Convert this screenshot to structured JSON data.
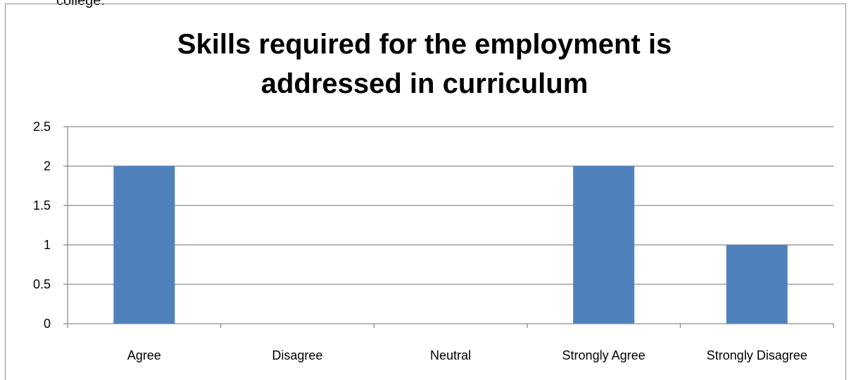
{
  "top_text": "college.",
  "chart_data": {
    "type": "bar",
    "title": "Skills required for the employment is addressed in curriculum",
    "title_lines": [
      "Skills required for the employment is",
      "addressed in curriculum"
    ],
    "xlabel": "",
    "ylabel": "",
    "categories": [
      "Agree",
      "Disagree",
      "Neutral",
      "Strongly Agree",
      "Strongly Disagree"
    ],
    "values": [
      2,
      0,
      0,
      2,
      1
    ],
    "ylim": [
      0,
      2.5
    ],
    "yticks": [
      0,
      0.5,
      1,
      1.5,
      2,
      2.5
    ],
    "ytick_labels": [
      "0",
      "0.5",
      "1",
      "1.5",
      "2",
      "2.5"
    ],
    "grid": true,
    "legend": "none",
    "bar_color": "#4f81bd",
    "grid_color": "#8c8c8c"
  }
}
